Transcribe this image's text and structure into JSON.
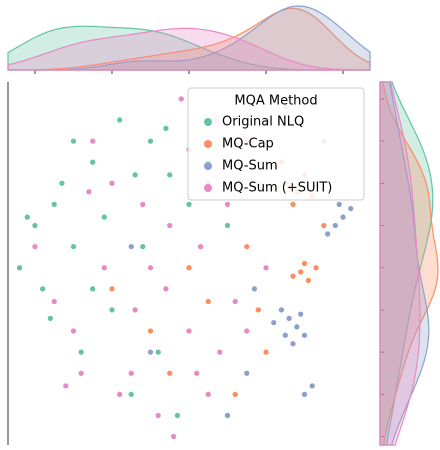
{
  "chart_data": {
    "type": "scatter",
    "legend_title": "MQA Method",
    "legend": "upper right",
    "marginal": "kde",
    "xlim": [
      -47,
      47
    ],
    "ylim": [
      -42,
      44
    ],
    "xticks": [
      -40,
      -20,
      0,
      20,
      40
    ],
    "yticks": [
      40,
      30,
      20,
      10,
      0,
      -10,
      -20,
      -30,
      -40
    ],
    "series": [
      {
        "name": "Original NLQ",
        "color": "#66c2a5",
        "x": [
          -40,
          -42,
          -35,
          -30,
          -25,
          -20,
          -10,
          -5,
          -28,
          -15,
          -38,
          -22,
          -12,
          -8,
          0,
          -30,
          -18,
          -3,
          5,
          -25,
          10,
          -33,
          -44,
          -14,
          -6,
          -36
        ],
        "y": [
          10,
          12,
          15,
          5,
          25,
          -10,
          30,
          22,
          -20,
          -30,
          -5,
          12,
          5,
          -20,
          15,
          30,
          35,
          -35,
          25,
          -5,
          10,
          20,
          0,
          22,
          33,
          -12
        ]
      },
      {
        "name": "MQ-Cap",
        "color": "#fc8d62",
        "x": [
          25,
          28,
          30,
          27,
          32,
          29,
          31,
          27,
          33,
          15,
          5,
          -10,
          20,
          10,
          -20,
          24,
          35,
          -5,
          18,
          0,
          12,
          26,
          30
        ],
        "y": [
          20,
          18,
          22,
          15,
          17,
          -1,
          -3,
          -2,
          0,
          5,
          -8,
          -15,
          -20,
          30,
          -5,
          25,
          10,
          -25,
          -10,
          0,
          -30,
          19,
          1
        ]
      },
      {
        "name": "MQ-Sum",
        "color": "#8da0cb",
        "x": [
          26,
          28,
          24,
          30,
          27,
          22,
          38,
          40,
          36,
          42,
          20,
          25,
          15,
          10,
          30,
          5,
          -10,
          35,
          17,
          -15,
          29,
          25,
          39,
          32
        ],
        "y": [
          -12,
          -14,
          -10,
          -16,
          -18,
          -13,
          10,
          12,
          8,
          14,
          35,
          38,
          -25,
          -35,
          -30,
          20,
          -20,
          30,
          -5,
          5,
          -11,
          -16,
          15,
          -28
        ]
      },
      {
        "name": "MQ-Sum (+SUIT)",
        "color": "#e78ac3",
        "x": [
          -35,
          -30,
          -20,
          -15,
          -10,
          -5,
          0,
          5,
          10,
          15,
          -25,
          -2,
          -8,
          -18,
          -28,
          3,
          8,
          12,
          -12,
          18,
          -22,
          0,
          -6,
          20,
          -32,
          7,
          -4,
          15,
          -14,
          2,
          -40,
          -26
        ],
        "y": [
          -8,
          -15,
          20,
          -25,
          0,
          10,
          -15,
          -30,
          15,
          30,
          30,
          40,
          -35,
          -30,
          -25,
          5,
          -20,
          -8,
          15,
          20,
          0,
          28,
          -5,
          0,
          -28,
          35,
          -40,
          -15,
          -10,
          -25,
          5,
          18
        ]
      }
    ]
  }
}
